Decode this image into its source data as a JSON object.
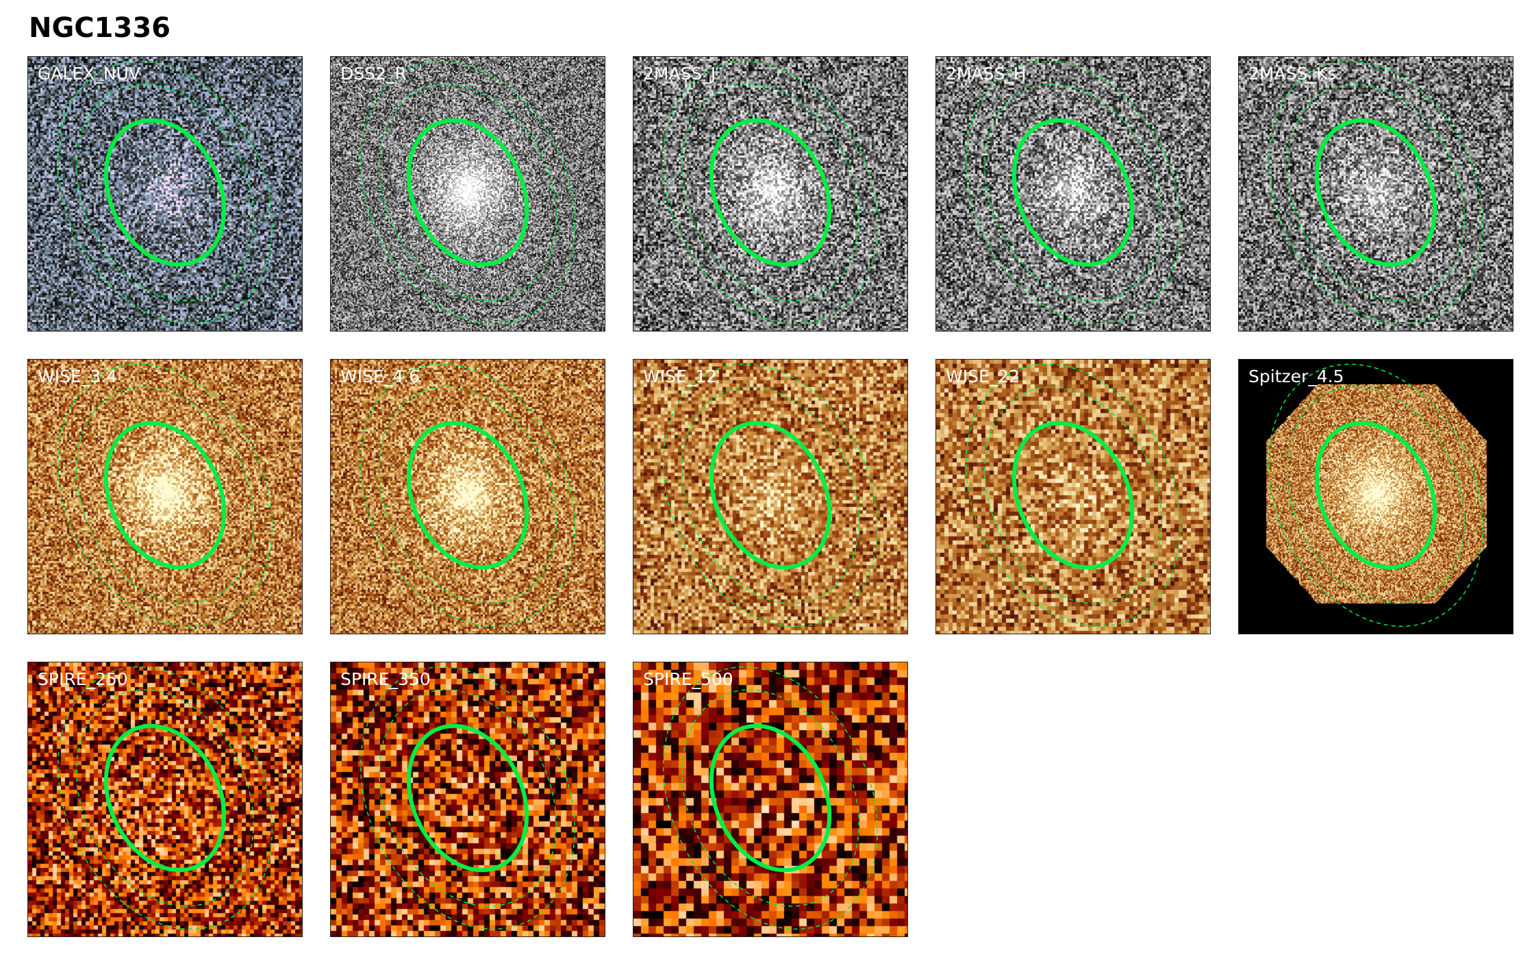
{
  "title": "NGC1336",
  "panels": [
    {
      "label": "GALEX_NUV",
      "cmap": "bone"
    },
    {
      "label": "DSS2_R",
      "cmap": "gray"
    },
    {
      "label": "2MASS_J",
      "cmap": "gray"
    },
    {
      "label": "2MASS_H",
      "cmap": "gray"
    },
    {
      "label": "2MASS_Ks",
      "cmap": "gray"
    },
    {
      "label": "WISE_3.4",
      "cmap": "pink"
    },
    {
      "label": "WISE_4.6",
      "cmap": "pink"
    },
    {
      "label": "WISE_12",
      "cmap": "pink"
    },
    {
      "label": "WISE_22",
      "cmap": "pink"
    },
    {
      "label": "Spitzer_4.5",
      "cmap": "pink"
    },
    {
      "label": "SPIRE_250",
      "cmap": "gist_heat"
    },
    {
      "label": "SPIRE_350",
      "cmap": "gist_heat"
    },
    {
      "label": "SPIRE_500",
      "cmap": "gist_heat"
    }
  ],
  "colors": {
    "aperture": "#00ee44"
  }
}
